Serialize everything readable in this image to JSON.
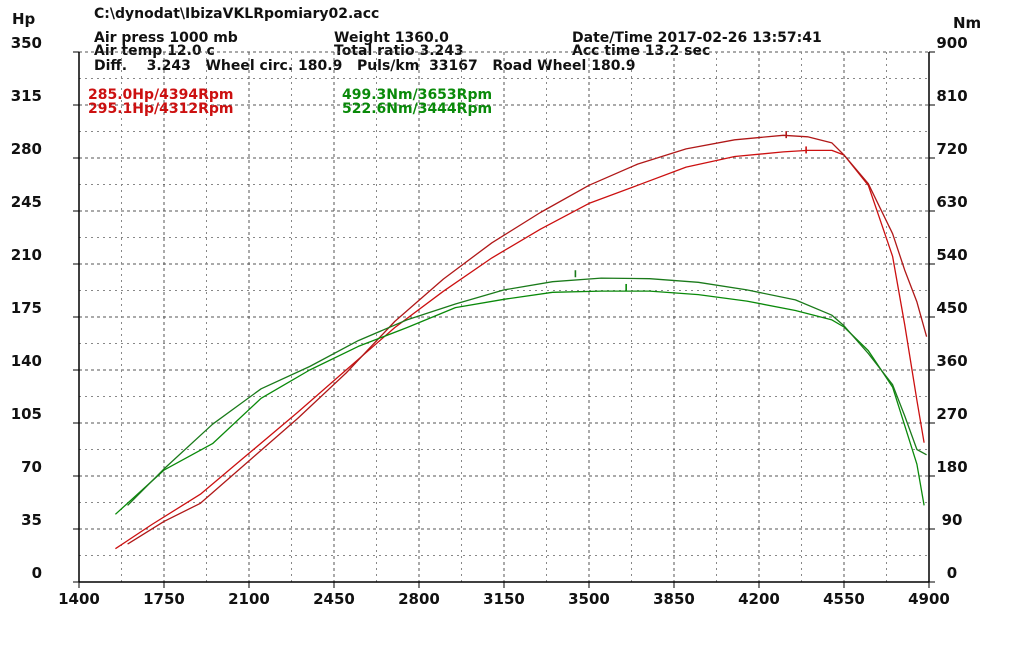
{
  "header": {
    "file": "C:\\dynodat\\IbizaVKLRpomiary02.acc",
    "air_press": "Air press  1000 mb",
    "air_temp": "Air temp  12.0 c",
    "weight": "Weight  1360.0",
    "total_ratio": "Total ratio 3.243",
    "datetime": "Date/Time  2017-02-26 13:57:41",
    "acc_time": "Acc time  13.2 sec",
    "line3": "Diff.    3.243   Wheel circ. 180.9   Puls/km  33167   Road Wheel 180.9"
  },
  "peaks": {
    "hp": [
      "285.0Hp/4394Rpm",
      "295.1Hp/4312Rpm"
    ],
    "nm": [
      "499.3Nm/3653Rpm",
      "522.6Nm/3444Rpm"
    ]
  },
  "colors": {
    "hp": "#cc1010",
    "hp2": "#b01818",
    "nm": "#0a8a0a",
    "nm2": "#1a7a1a",
    "axis": "#000000"
  },
  "chart_data": {
    "type": "line",
    "left_axis_label": "Hp",
    "right_axis_label": "Nm",
    "x_ticks": [
      "1400",
      "1750",
      "2100",
      "2450",
      "2800",
      "3150",
      "3500",
      "3850",
      "4200",
      "4550",
      "4900"
    ],
    "left_ticks": [
      "0",
      "35",
      "70",
      "105",
      "140",
      "175",
      "210",
      "245",
      "280",
      "315",
      "350"
    ],
    "right_ticks": [
      "0",
      "90",
      "180",
      "270",
      "360",
      "450",
      "540",
      "630",
      "720",
      "810",
      "900"
    ],
    "xlim": [
      1400,
      4900
    ],
    "ylim_left": [
      0,
      350
    ],
    "ylim_right": [
      0,
      900
    ],
    "series": [
      {
        "axis": "left",
        "color": "#cc1010",
        "x": [
          1550,
          1700,
          1900,
          2100,
          2300,
          2500,
          2700,
          2900,
          3100,
          3300,
          3500,
          3700,
          3900,
          4100,
          4300,
          4400,
          4500,
          4550,
          4650,
          4750,
          4800,
          4850,
          4880
        ],
        "y": [
          22,
          38,
          58,
          85,
          112,
          140,
          168,
          192,
          214,
          233,
          250,
          262,
          274,
          281,
          284,
          285,
          285,
          282,
          262,
          215,
          170,
          120,
          92
        ]
      },
      {
        "axis": "left",
        "color": "#b01818",
        "x": [
          1600,
          1750,
          1900,
          2100,
          2300,
          2500,
          2700,
          2900,
          3100,
          3300,
          3500,
          3700,
          3900,
          4100,
          4300,
          4400,
          4500,
          4550,
          4650,
          4750,
          4800,
          4850,
          4890
        ],
        "y": [
          25,
          40,
          52,
          80,
          108,
          138,
          172,
          200,
          224,
          244,
          262,
          276,
          286,
          292,
          295,
          294,
          290,
          282,
          263,
          230,
          206,
          185,
          162
        ]
      },
      {
        "axis": "right",
        "color": "#0a8a0a",
        "x": [
          1550,
          1750,
          1950,
          2150,
          2350,
          2550,
          2750,
          2950,
          3150,
          3350,
          3550,
          3750,
          3950,
          4150,
          4350,
          4500,
          4550,
          4650,
          4750,
          4800,
          4850,
          4880
        ],
        "y": [
          115,
          190,
          235,
          312,
          360,
          400,
          432,
          466,
          480,
          492,
          494,
          494,
          488,
          477,
          461,
          445,
          433,
          393,
          331,
          266,
          200,
          130
        ]
      },
      {
        "axis": "right",
        "color": "#1a7a1a",
        "x": [
          1600,
          1750,
          1950,
          2150,
          2350,
          2550,
          2750,
          2950,
          3150,
          3350,
          3550,
          3750,
          3950,
          4150,
          4350,
          4500,
          4550,
          4650,
          4750,
          4800,
          4850,
          4890
        ],
        "y": [
          130,
          192,
          268,
          328,
          366,
          410,
          445,
          472,
          496,
          510,
          516,
          515,
          509,
          496,
          479,
          453,
          435,
          388,
          335,
          282,
          225,
          216
        ]
      }
    ],
    "peak_markers": [
      {
        "axis": "left",
        "x": 4394,
        "y": 285.0,
        "color": "#cc1010"
      },
      {
        "axis": "left",
        "x": 4312,
        "y": 295.1,
        "color": "#b01818"
      },
      {
        "axis": "right",
        "x": 3653,
        "y": 499.3,
        "color": "#0a8a0a"
      },
      {
        "axis": "right",
        "x": 3444,
        "y": 522.6,
        "color": "#1a7a1a"
      }
    ]
  }
}
